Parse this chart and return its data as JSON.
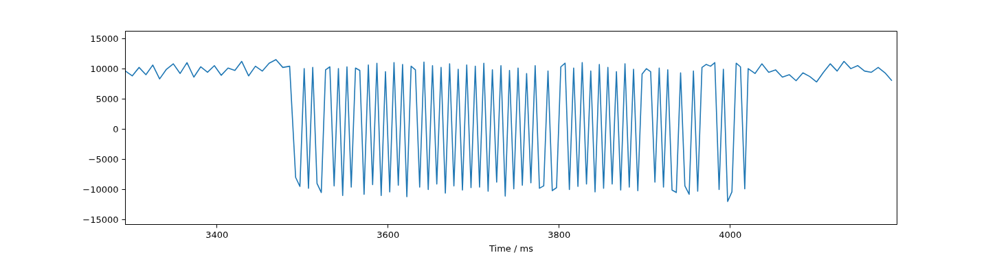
{
  "chart_data": {
    "type": "line",
    "xlabel": "Time / ms",
    "xlim": [
      3293,
      4195
    ],
    "ylim": [
      -15800,
      16200
    ],
    "xticks": [
      3400,
      3600,
      3800,
      4000
    ],
    "yticks": [
      -15000,
      -10000,
      -5000,
      0,
      5000,
      10000,
      15000
    ],
    "grid": false,
    "line_style": "solid",
    "series": [
      {
        "color": "#1f77b4",
        "x": [
          3293,
          3301,
          3309,
          3317,
          3325,
          3333,
          3341,
          3349,
          3357,
          3365,
          3373,
          3381,
          3389,
          3397,
          3405,
          3413,
          3421,
          3429,
          3437,
          3445,
          3453,
          3461,
          3469,
          3477,
          3485,
          3492,
          3497,
          3502,
          3507,
          3512,
          3517,
          3522,
          3527,
          3532,
          3537,
          3542,
          3547,
          3552,
          3557,
          3562,
          3567,
          3572,
          3577,
          3582,
          3587,
          3592,
          3597,
          3602,
          3607,
          3612,
          3617,
          3622,
          3627,
          3632,
          3637,
          3642,
          3647,
          3652,
          3657,
          3662,
          3667,
          3672,
          3677,
          3682,
          3687,
          3692,
          3697,
          3702,
          3707,
          3712,
          3717,
          3722,
          3727,
          3732,
          3737,
          3742,
          3747,
          3752,
          3757,
          3762,
          3767,
          3772,
          3777,
          3782,
          3787,
          3792,
          3797,
          3802,
          3807,
          3812,
          3817,
          3822,
          3827,
          3832,
          3837,
          3842,
          3847,
          3852,
          3857,
          3862,
          3867,
          3872,
          3877,
          3882,
          3887,
          3892,
          3897,
          3902,
          3907,
          3912,
          3917,
          3922,
          3927,
          3932,
          3937,
          3942,
          3947,
          3952,
          3957,
          3962,
          3967,
          3972,
          3977,
          3982,
          3987,
          3992,
          3997,
          4002,
          4007,
          4012,
          4017,
          4021,
          4029,
          4037,
          4045,
          4053,
          4061,
          4069,
          4077,
          4085,
          4093,
          4101,
          4109,
          4117,
          4125,
          4133,
          4141,
          4149,
          4157,
          4165,
          4173,
          4181,
          4189
        ],
        "values": [
          9600,
          8800,
          10200,
          9000,
          10600,
          8300,
          9900,
          10800,
          9200,
          11000,
          8600,
          10300,
          9400,
          10500,
          8900,
          10100,
          9700,
          11200,
          8800,
          10400,
          9600,
          10900,
          11500,
          10200,
          10400,
          -8000,
          -9500,
          10000,
          -9800,
          10200,
          -9000,
          -10500,
          9800,
          10300,
          -9400,
          10000,
          -11000,
          10300,
          -9600,
          10100,
          9700,
          -10800,
          10600,
          -9200,
          10900,
          -11000,
          9500,
          -10400,
          11000,
          -9300,
          10700,
          -11200,
          10400,
          9800,
          -9600,
          11100,
          -10000,
          10500,
          -9100,
          10200,
          -10600,
          10800,
          -9400,
          9900,
          -10100,
          10600,
          -9700,
          10400,
          -9600,
          10900,
          -10300,
          9800,
          -8800,
          10500,
          -11100,
          9700,
          -9900,
          10100,
          -9300,
          9200,
          -8900,
          10500,
          -9800,
          -9400,
          9600,
          -10200,
          -9700,
          10300,
          10900,
          -10000,
          10100,
          -9500,
          11000,
          -9100,
          9600,
          -10400,
          10700,
          -9800,
          10200,
          -9100,
          9500,
          -10100,
          10800,
          -9600,
          9900,
          -10200,
          9100,
          10000,
          9500,
          -8800,
          10100,
          -9600,
          9800,
          -10100,
          -10500,
          9300,
          -9400,
          -10800,
          9600,
          -10300,
          10200,
          10700,
          10400,
          11000,
          -10000,
          9900,
          -12000,
          -10400,
          10900,
          10300,
          -9900,
          10000,
          9200,
          10800,
          9400,
          9800,
          8600,
          9000,
          8000,
          9300,
          8700,
          7800,
          9400,
          10800,
          9600,
          11200,
          10000,
          10500,
          9600,
          9400,
          10200,
          9300,
          8000
        ]
      }
    ]
  }
}
